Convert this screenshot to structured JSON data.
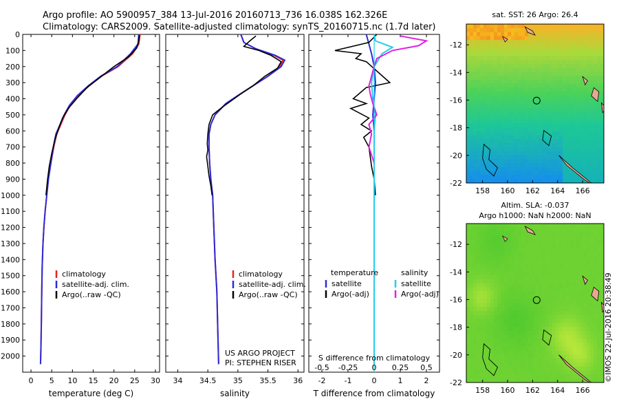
{
  "header": {
    "line1": "Argo profile: AO 5900957_384 13-Jul-2016 20160713_736 16.038S 162.326E",
    "line2": "Climatology: CARS2009. Satellite-adjusted climatology: synTS_20160715.nc (1.7d later)"
  },
  "side_stamp": "©IMOS 22-Jul-2016 20:38:49",
  "colors": {
    "climatology": "#e8211c",
    "satellite": "#2b2bd9",
    "argo": "#000000",
    "cyan": "#22ccee",
    "magenta": "#e020e0",
    "coast": "#e8a890"
  },
  "chart_data": [
    {
      "type": "line",
      "id": "temperature",
      "xlabel": "temperature (deg C)",
      "xlim": [
        -2,
        31
      ],
      "xticks": [
        0,
        5,
        10,
        15,
        20,
        25,
        30
      ],
      "xtick_labels": [
        "0",
        "5",
        "10",
        "15",
        "20",
        "25",
        "30"
      ],
      "ylim": [
        2100,
        0
      ],
      "yticks": [
        0,
        100,
        200,
        300,
        400,
        500,
        600,
        700,
        800,
        900,
        1000,
        1100,
        1200,
        1300,
        1400,
        1500,
        1600,
        1700,
        1800,
        1900,
        2000
      ],
      "ytick_labels": [
        "0",
        "100",
        "200",
        "300",
        "400",
        "500",
        "600",
        "700",
        "800",
        "900",
        "1000",
        "1100",
        "1200",
        "1300",
        "1400",
        "1500",
        "1600",
        "1700",
        "1800",
        "1900",
        "2000"
      ],
      "legend": {
        "position": "lower-middle",
        "entries": [
          {
            "label": "climatology",
            "color": "#e8211c"
          },
          {
            "label": "satellite-adj. clim.",
            "color": "#2b2bd9"
          },
          {
            "label": "Argo(..raw -QC)",
            "color": "#000000"
          }
        ]
      },
      "series": [
        {
          "name": "climatology",
          "color": "#e8211c",
          "x": [
            26.3,
            26.0,
            24.5,
            21,
            17,
            14,
            11.5,
            9.5,
            8.2,
            7.2,
            6.2,
            5.5,
            4.8,
            4.2,
            3.8,
            3.4,
            3.1,
            2.9,
            2.7,
            2.6,
            2.5,
            2.4,
            2.3
          ],
          "y": [
            0,
            60,
            120,
            200,
            260,
            320,
            380,
            440,
            500,
            560,
            620,
            700,
            800,
            900,
            1000,
            1100,
            1200,
            1300,
            1450,
            1600,
            1800,
            1950,
            2050
          ]
        },
        {
          "name": "satellite-adj. clim.",
          "color": "#2b2bd9",
          "x": [
            26.0,
            25.8,
            24.0,
            20.8,
            16.8,
            13.8,
            11.2,
            9.3,
            8.0,
            7.0,
            6.0,
            5.4,
            4.8,
            4.2,
            3.8,
            3.4,
            3.1,
            2.9,
            2.7,
            2.6,
            2.5,
            2.4,
            2.3
          ],
          "y": [
            0,
            60,
            120,
            200,
            260,
            320,
            380,
            440,
            500,
            560,
            620,
            700,
            800,
            900,
            1000,
            1100,
            1200,
            1300,
            1450,
            1600,
            1800,
            1950,
            2050
          ]
        },
        {
          "name": "Argo(..raw -QC)",
          "color": "#000000",
          "x": [
            26.1,
            26.0,
            25.5,
            23.5,
            20,
            16.5,
            13.5,
            11.0,
            9.0,
            7.6,
            6.6,
            5.7,
            5.0,
            4.4,
            4.0,
            3.6
          ],
          "y": [
            5,
            40,
            85,
            140,
            200,
            270,
            330,
            400,
            460,
            520,
            590,
            660,
            740,
            820,
            900,
            1000
          ]
        }
      ]
    },
    {
      "type": "line",
      "id": "salinity",
      "xlabel": "salinity",
      "xlim": [
        33.8,
        36.1
      ],
      "xticks": [
        34,
        34.5,
        35,
        35.5,
        36
      ],
      "xtick_labels": [
        "34",
        "34.5",
        "35",
        "35.5",
        "36"
      ],
      "ylim": [
        2100,
        0
      ],
      "annotation": [
        "US ARGO PROJECT",
        "PI: STEPHEN RISER"
      ],
      "legend": {
        "position": "lower-middle",
        "entries": [
          {
            "label": "climatology",
            "color": "#e8211c"
          },
          {
            "label": "satellite-adj. clim.",
            "color": "#2b2bd9"
          },
          {
            "label": "Argo(..raw -QC)",
            "color": "#000000"
          }
        ]
      },
      "series": [
        {
          "name": "climatology",
          "color": "#e8211c",
          "x": [
            35.05,
            35.1,
            35.3,
            35.6,
            35.75,
            35.7,
            35.5,
            35.25,
            35.0,
            34.8,
            34.62,
            34.55,
            34.52,
            34.52,
            34.53,
            34.55,
            34.58,
            34.6,
            34.62,
            34.65,
            34.67,
            34.68
          ],
          "y": [
            0,
            50,
            90,
            130,
            160,
            200,
            260,
            320,
            380,
            430,
            500,
            560,
            620,
            700,
            800,
            900,
            1000,
            1200,
            1400,
            1600,
            1900,
            2050
          ]
        },
        {
          "name": "satellite-adj. clim.",
          "color": "#2b2bd9",
          "x": [
            35.05,
            35.1,
            35.3,
            35.62,
            35.78,
            35.72,
            35.5,
            35.25,
            35.0,
            34.8,
            34.62,
            34.55,
            34.52,
            34.52,
            34.53,
            34.55,
            34.58,
            34.6,
            34.62,
            34.65,
            34.67,
            34.68
          ],
          "y": [
            0,
            50,
            90,
            130,
            160,
            200,
            260,
            320,
            380,
            430,
            500,
            560,
            620,
            700,
            800,
            900,
            1000,
            1200,
            1400,
            1600,
            1900,
            2050
          ]
        },
        {
          "name": "Argo(..raw -QC)",
          "color": "#000000",
          "x": [
            35.3,
            35.2,
            35.1,
            35.35,
            35.55,
            35.72,
            35.66,
            35.45,
            35.25,
            35.05,
            34.9,
            34.75,
            34.58,
            34.52,
            34.5,
            34.49,
            34.5,
            34.48,
            34.5,
            34.52,
            34.55,
            34.57
          ],
          "y": [
            10,
            40,
            75,
            100,
            130,
            170,
            210,
            260,
            320,
            370,
            410,
            450,
            500,
            560,
            620,
            680,
            720,
            760,
            820,
            880,
            940,
            1000
          ]
        }
      ]
    },
    {
      "type": "line",
      "id": "difference",
      "xlabel_bottom": "T difference from climatology",
      "xlabel_top": "S difference from climatology",
      "xlim": [
        -2.5,
        2.5
      ],
      "xticks": [
        -2,
        -1,
        0,
        1,
        2
      ],
      "xtick_labels": [
        "-2",
        "-1",
        "0",
        "1",
        "2"
      ],
      "xticks_top": [
        -2.0,
        -1.0,
        0.0,
        1.0,
        2.0
      ],
      "xtick_labels_top": [
        "-0.5",
        "-0.25",
        "0",
        "0.25",
        "0.5"
      ],
      "ylim": [
        2100,
        0
      ],
      "legend": {
        "position": "lower-middle",
        "entries": [
          {
            "group": "temperature",
            "label": "satellite",
            "color": "#2b2bd9"
          },
          {
            "group": "temperature",
            "label": "Argo(-adj)",
            "color": "#000000"
          },
          {
            "group": "salinity",
            "label": "satellite",
            "color": "#22ccee"
          },
          {
            "group": "salinity",
            "label": "Argo(-adj)",
            "color": "#e020e0"
          }
        ]
      },
      "legend_headers": [
        "temperature",
        "salinity"
      ],
      "series": [
        {
          "name": "T satellite",
          "color": "#2b2bd9",
          "x": [
            -0.3,
            -0.2,
            -0.1,
            0.0,
            0.05,
            0.0,
            -0.05,
            0.0,
            0.0,
            0.0,
            0.0,
            0.0,
            0.0,
            0.0
          ],
          "y": [
            0,
            60,
            120,
            200,
            300,
            400,
            500,
            600,
            800,
            1000,
            1300,
            1600,
            1900,
            2050
          ]
        },
        {
          "name": "T Argo(-adj)",
          "color": "#000000",
          "x": [
            0.1,
            -0.2,
            -1.5,
            -0.5,
            -0.7,
            -0.3,
            0.6,
            -0.3,
            -0.8,
            -0.3,
            -0.9,
            -0.2,
            -0.5,
            -0.1,
            -0.4,
            -0.2,
            -0.15,
            -0.1,
            0.0,
            0.05
          ],
          "y": [
            0,
            50,
            100,
            120,
            150,
            170,
            300,
            330,
            400,
            430,
            460,
            520,
            560,
            600,
            640,
            700,
            760,
            820,
            900,
            1000
          ]
        },
        {
          "name": "S satellite",
          "color": "#22ccee",
          "x": [
            0.0,
            0.05,
            0.7,
            0.3,
            0.0,
            -0.1,
            -0.05,
            0.05,
            0.0,
            0.0,
            0.0,
            0.0,
            0.0,
            0.0
          ],
          "y": [
            0,
            40,
            80,
            120,
            200,
            300,
            400,
            500,
            600,
            800,
            1000,
            1300,
            1600,
            2050
          ]
        },
        {
          "name": "S Argo(-adj)",
          "color": "#e020e0",
          "x": [
            1.0,
            2.0,
            1.7,
            0.7,
            0.1,
            0.0,
            -0.1,
            -0.2,
            -0.15,
            -0.05,
            0.1,
            -0.2,
            -0.1,
            -0.2,
            0.0
          ],
          "y": [
            10,
            40,
            70,
            100,
            150,
            200,
            260,
            320,
            370,
            430,
            500,
            560,
            620,
            700,
            800
          ]
        }
      ]
    },
    {
      "type": "heatmap",
      "id": "sst_map",
      "title": "sat. SST: 26 Argo: 26.4",
      "xticks": [
        158,
        160,
        162,
        164,
        166
      ],
      "xtick_labels": [
        "158",
        "160",
        "162",
        "164",
        "166"
      ],
      "yticks": [
        -12,
        -14,
        -16,
        -18,
        -20,
        -22
      ],
      "ytick_labels": [
        "-12",
        "-14",
        "-16",
        "-18",
        "-20",
        "-22"
      ],
      "xlim": [
        156.7,
        167.7
      ],
      "ylim": [
        -22,
        -10.5
      ],
      "marker": {
        "lon": 162.326,
        "lat": -16.038
      }
    },
    {
      "type": "heatmap",
      "id": "sla_map",
      "title": "Altim. SLA: -0.037",
      "subtitle": "Argo h1000: NaN h2000: NaN",
      "xticks": [
        158,
        160,
        162,
        164,
        166
      ],
      "xtick_labels": [
        "158",
        "160",
        "162",
        "164",
        "166"
      ],
      "yticks": [
        -12,
        -14,
        -16,
        -18,
        -20,
        -22
      ],
      "ytick_labels": [
        "-12",
        "-14",
        "-16",
        "-18",
        "-20",
        "-22"
      ],
      "xlim": [
        156.7,
        167.7
      ],
      "ylim": [
        -22,
        -10.5
      ],
      "marker": {
        "lon": 162.326,
        "lat": -16.038
      }
    }
  ]
}
